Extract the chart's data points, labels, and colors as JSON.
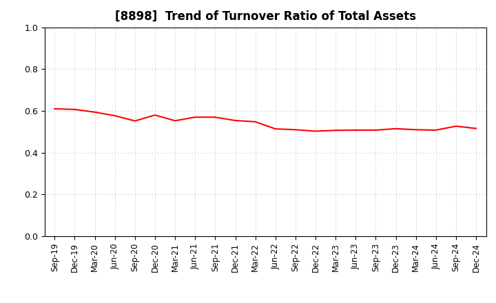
{
  "title": "[8898]  Trend of Turnover Ratio of Total Assets",
  "x_labels": [
    "Sep-19",
    "Dec-19",
    "Mar-20",
    "Jun-20",
    "Sep-20",
    "Dec-20",
    "Mar-21",
    "Jun-21",
    "Sep-21",
    "Dec-21",
    "Mar-22",
    "Jun-22",
    "Sep-22",
    "Dec-22",
    "Mar-23",
    "Jun-23",
    "Sep-23",
    "Dec-23",
    "Mar-24",
    "Jun-24",
    "Sep-24",
    "Dec-24"
  ],
  "y_values": [
    0.61,
    0.607,
    0.594,
    0.577,
    0.552,
    0.58,
    0.553,
    0.57,
    0.57,
    0.554,
    0.548,
    0.514,
    0.51,
    0.503,
    0.507,
    0.508,
    0.508,
    0.515,
    0.51,
    0.508,
    0.527,
    0.516
  ],
  "line_color": "#FF0000",
  "line_width": 1.5,
  "ylim": [
    0.0,
    1.0
  ],
  "yticks": [
    0.0,
    0.2,
    0.4,
    0.6,
    0.8,
    1.0
  ],
  "background_color": "#ffffff",
  "grid_color": "#aaaaaa",
  "title_fontsize": 12,
  "tick_fontsize": 8.5
}
